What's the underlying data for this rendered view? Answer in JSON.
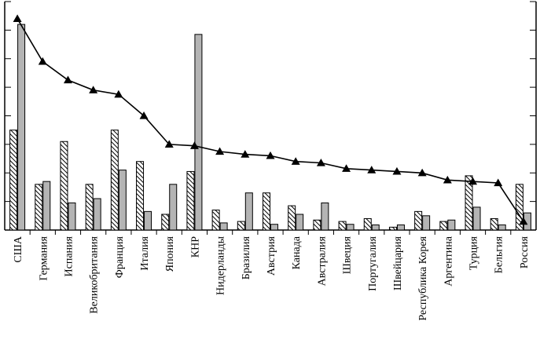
{
  "chart_data": {
    "type": "bar",
    "categories": [
      "США",
      "Германия",
      "Испания",
      "Великобритания",
      "Франция",
      "Италия",
      "Япония",
      "КНР",
      "Нидерланды",
      "Бразилия",
      "Австрия",
      "Канада",
      "Австралия",
      "Швеция",
      "Португалия",
      "Швейцария",
      "Республика Корея",
      "Аргентина",
      "Турция",
      "Бельгия",
      "Россия"
    ],
    "series": [
      {
        "style": "hatched",
        "values": [
          35,
          16,
          31,
          16,
          35,
          24,
          5.5,
          20.5,
          7,
          3,
          13,
          8.5,
          3.5,
          3,
          4,
          1,
          6.5,
          3,
          19,
          4,
          16
        ]
      },
      {
        "style": "gray",
        "values": [
          72,
          17,
          9.5,
          11,
          21,
          6.5,
          16,
          68.5,
          2.5,
          13,
          2,
          5.5,
          9.5,
          2,
          1.8,
          1.8,
          5,
          3.5,
          8,
          1.8,
          6
        ]
      },
      {
        "style": "line",
        "marker": "triangle",
        "values": [
          74,
          59,
          52.5,
          49,
          47.5,
          40,
          30,
          29.5,
          27.5,
          26.5,
          26,
          24,
          23.5,
          21.5,
          21,
          20.5,
          20,
          17.5,
          17,
          16.5,
          3
        ]
      }
    ],
    "ylim": [
      0,
      80
    ],
    "yticks": [
      0,
      10,
      20,
      30,
      40,
      50,
      60,
      70,
      80
    ],
    "colors": {
      "bar_gray": "#b4b4b4",
      "hatch": "#000000",
      "line": "#000000"
    },
    "grid": false,
    "legend": "none"
  }
}
